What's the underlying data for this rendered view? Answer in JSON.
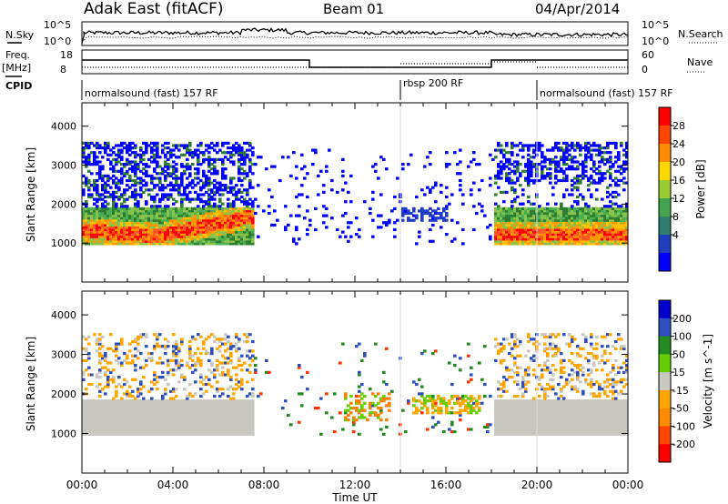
{
  "header": {
    "station": "Adak East (fitACF)",
    "beam": "Beam 01",
    "date": "04/Apr/2014"
  },
  "panels": {
    "nsky_label": "N.Sky",
    "nsearch_label": "N.Search",
    "noise_ticks": [
      "10^5",
      "10^0"
    ],
    "freq_label": "Freq.",
    "freq_unit": "[MHz]",
    "freq_ticks": [
      "18",
      "8"
    ],
    "nave_label": "Nave",
    "nave_ticks": [
      "60",
      "0"
    ],
    "cpid_label": "CPID",
    "cpid_segments": [
      {
        "label": "normalsound (fast) 157 RF",
        "start_hour": 0,
        "end_hour": 14
      },
      {
        "label": "rbsp 200 RF",
        "start_hour": 14,
        "end_hour": 20
      },
      {
        "label": "normalsound (fast) 157 RF",
        "start_hour": 20,
        "end_hour": 24
      }
    ]
  },
  "chart_data": [
    {
      "type": "heatmap",
      "quantity": "power",
      "ylabel": "Slant Range [km]",
      "xlabel": "Time UT",
      "xlim": [
        0,
        24
      ],
      "ylim": [
        0,
        4600
      ],
      "x_ticks": [
        "00:00",
        "04:00",
        "08:00",
        "12:00",
        "16:00",
        "20:00",
        "00:00"
      ],
      "y_ticks": [
        1000,
        2000,
        3000,
        4000
      ],
      "colorbar": {
        "label": "Power [dB]",
        "ticks": [
          28,
          24,
          20,
          16,
          12,
          8,
          4
        ],
        "colors": [
          "#0000ff",
          "#1f3fbf",
          "#2f7f6f",
          "#43a34f",
          "#9acd32",
          "#ffd700",
          "#ff8c00",
          "#ff4500",
          "#ff0000"
        ]
      },
      "regions": [
        {
          "name": "main echo band",
          "t_start": 0.0,
          "t_end": 7.5,
          "range_low_km": 1000,
          "range_high_km": 1800,
          "power_db_peak": 28
        },
        {
          "name": "upper scatter",
          "t_start": 0.0,
          "t_end": 7.5,
          "range_low_km": 1800,
          "range_high_km": 3500,
          "power_db_peak": 8
        },
        {
          "name": "evening echo band",
          "t_start": 18.0,
          "t_end": 24.0,
          "range_low_km": 1000,
          "range_high_km": 1800,
          "power_db_peak": 24
        },
        {
          "name": "evening upper scatter",
          "t_start": 18.0,
          "t_end": 24.0,
          "range_low_km": 2400,
          "range_high_km": 3500,
          "power_db_peak": 8
        },
        {
          "name": "midday patches",
          "t_start": 9.0,
          "t_end": 17.5,
          "range_low_km": 1000,
          "range_high_km": 3200,
          "power_db_peak": 10
        }
      ]
    },
    {
      "type": "heatmap",
      "quantity": "velocity",
      "ylabel": "Slant Range [km]",
      "xlabel": "Time UT",
      "xlim": [
        0,
        24
      ],
      "ylim": [
        0,
        4600
      ],
      "x_ticks": [
        "00:00",
        "04:00",
        "08:00",
        "12:00",
        "16:00",
        "20:00",
        "00:00"
      ],
      "y_ticks": [
        1000,
        2000,
        3000,
        4000
      ],
      "colorbar": {
        "label": "Velocity [m s^-1]",
        "tick_labels": [
          "200",
          "100",
          "50",
          "15",
          "-15",
          "-50",
          "-100",
          "-200"
        ],
        "colors": [
          "#0000cd",
          "#2f4fbf",
          "#228b22",
          "#66cd00",
          "#c8c8c0",
          "#ffa500",
          "#ff8c00",
          "#ff4500",
          "#ff0000"
        ]
      },
      "regions": [
        {
          "name": "ground scatter band",
          "t_start": 0.0,
          "t_end": 7.5,
          "range_low_km": 1000,
          "range_high_km": 1800,
          "velocity_ms": 0
        },
        {
          "name": "evening ground scatter",
          "t_start": 18.0,
          "t_end": 24.0,
          "range_low_km": 1000,
          "range_high_km": 1800,
          "velocity_ms": 0
        },
        {
          "name": "midday flow",
          "t_start": 14.5,
          "t_end": 17.5,
          "range_low_km": 1500,
          "range_high_km": 1900,
          "velocity_ms": -40
        }
      ]
    }
  ]
}
